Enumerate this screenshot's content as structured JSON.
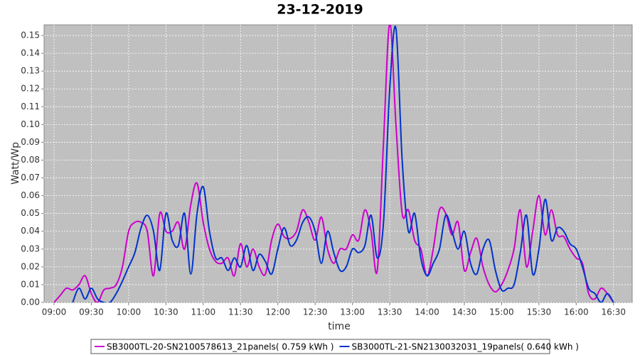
{
  "chart_data": {
    "type": "line",
    "title": "23-12-2019",
    "x_label": "time",
    "y_label": "Watt/Wp",
    "x": [
      "09:00",
      "09:05",
      "09:10",
      "09:15",
      "09:20",
      "09:25",
      "09:30",
      "09:35",
      "09:40",
      "09:45",
      "09:50",
      "09:55",
      "10:00",
      "10:05",
      "10:10",
      "10:15",
      "10:20",
      "10:25",
      "10:30",
      "10:35",
      "10:40",
      "10:45",
      "10:50",
      "10:55",
      "11:00",
      "11:05",
      "11:10",
      "11:15",
      "11:20",
      "11:25",
      "11:30",
      "11:35",
      "11:40",
      "11:45",
      "11:50",
      "11:55",
      "12:00",
      "12:05",
      "12:10",
      "12:15",
      "12:20",
      "12:25",
      "12:30",
      "12:35",
      "12:40",
      "12:45",
      "12:50",
      "12:55",
      "13:00",
      "13:05",
      "13:10",
      "13:15",
      "13:20",
      "13:25",
      "13:30",
      "13:35",
      "13:40",
      "13:45",
      "13:50",
      "13:55",
      "14:00",
      "14:05",
      "14:10",
      "14:15",
      "14:20",
      "14:25",
      "14:30",
      "14:35",
      "14:40",
      "14:45",
      "14:50",
      "14:55",
      "15:00",
      "15:05",
      "15:10",
      "15:15",
      "15:20",
      "15:25",
      "15:30",
      "15:35",
      "15:40",
      "15:45",
      "15:50",
      "15:55",
      "16:00",
      "16:05",
      "16:10",
      "16:15",
      "16:20",
      "16:25",
      "16:30"
    ],
    "series": [
      {
        "name": "SB3000TL-20-SN2100578613_21panels( 0.759 kWh )",
        "color": "#cc00cc",
        "values": [
          0,
          0.004,
          0.008,
          0.007,
          0.01,
          0.015,
          0.005,
          0,
          0.007,
          0.008,
          0.01,
          0.02,
          0.04,
          0.045,
          0.045,
          0.04,
          0.015,
          0.05,
          0.04,
          0.04,
          0.045,
          0.03,
          0.055,
          0.067,
          0.045,
          0.03,
          0.023,
          0.022,
          0.025,
          0.015,
          0.033,
          0.02,
          0.03,
          0.02,
          0.016,
          0.035,
          0.044,
          0.037,
          0.036,
          0.04,
          0.052,
          0.045,
          0.035,
          0.048,
          0.03,
          0.022,
          0.03,
          0.03,
          0.038,
          0.035,
          0.052,
          0.04,
          0.018,
          0.09,
          0.157,
          0.1,
          0.05,
          0.052,
          0.035,
          0.03,
          0.015,
          0.03,
          0.052,
          0.05,
          0.038,
          0.045,
          0.018,
          0.028,
          0.036,
          0.02,
          0.01,
          0.006,
          0.01,
          0.018,
          0.03,
          0.052,
          0.02,
          0.04,
          0.06,
          0.038,
          0.052,
          0.038,
          0.037,
          0.03,
          0.025,
          0.022,
          0.005,
          0.002,
          0.008,
          0.005,
          0
        ]
      },
      {
        "name": "SB3000TL-21-SN2130032031_19panels( 0.640 kWh )",
        "color": "#0033cc",
        "values": [
          null,
          null,
          null,
          0,
          0.008,
          0.002,
          0.008,
          0.002,
          0,
          0,
          0.005,
          0.012,
          0.02,
          0.028,
          0.042,
          0.049,
          0.04,
          0.018,
          0.05,
          0.035,
          0.032,
          0.05,
          0.016,
          0.05,
          0.065,
          0.04,
          0.025,
          0.025,
          0.018,
          0.025,
          0.02,
          0.032,
          0.018,
          0.027,
          0.023,
          0.016,
          0.03,
          0.042,
          0.032,
          0.035,
          0.045,
          0.048,
          0.04,
          0.022,
          0.04,
          0.028,
          0.018,
          0.02,
          0.03,
          0.028,
          0.032,
          0.049,
          0.025,
          0.045,
          0.12,
          0.154,
          0.08,
          0.04,
          0.05,
          0.025,
          0.015,
          0.022,
          0.03,
          0.049,
          0.04,
          0.03,
          0.04,
          0.022,
          0.016,
          0.03,
          0.035,
          0.018,
          0.007,
          0.008,
          0.01,
          0.028,
          0.049,
          0.016,
          0.03,
          0.058,
          0.035,
          0.042,
          0.04,
          0.033,
          0.03,
          0.02,
          0.008,
          0.005,
          0,
          0.005,
          0
        ]
      }
    ],
    "xlim": [
      "08:52",
      "16:45"
    ],
    "xticks": [
      "09:00",
      "09:30",
      "10:00",
      "10:30",
      "11:00",
      "11:30",
      "12:00",
      "12:30",
      "13:00",
      "13:30",
      "14:00",
      "14:30",
      "15:00",
      "15:30",
      "16:00",
      "16:30"
    ],
    "ylim": [
      0,
      0.156
    ],
    "yticks": [
      {
        "value": 0,
        "label": "0.00"
      },
      {
        "value": 0.01,
        "label": "0.01"
      },
      {
        "value": 0.02,
        "label": "0.02"
      },
      {
        "value": 0.03,
        "label": "0.03"
      },
      {
        "value": 0.04,
        "label": "0.04"
      },
      {
        "value": 0.05,
        "label": "0.05"
      },
      {
        "value": 0.06,
        "label": "0.06"
      },
      {
        "value": 0.07,
        "label": "0.07"
      },
      {
        "value": 0.08,
        "label": "0.08"
      },
      {
        "value": 0.09,
        "label": "0.09"
      },
      {
        "value": 0.1,
        "label": "0.10"
      },
      {
        "value": 0.11,
        "label": "0.11"
      },
      {
        "value": 0.12,
        "label": "0.12"
      },
      {
        "value": 0.13,
        "label": "0.13"
      },
      {
        "value": 0.14,
        "label": "0.14"
      },
      {
        "value": 0.15,
        "label": "0.15"
      }
    ],
    "grid": true
  }
}
